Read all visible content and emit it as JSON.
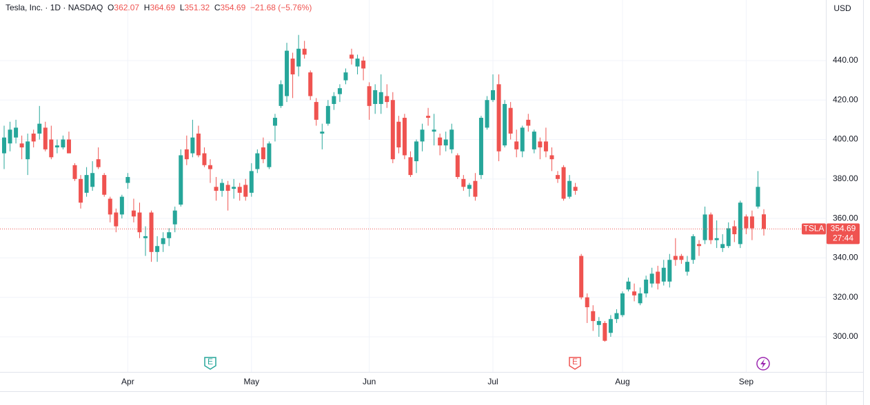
{
  "header": {
    "symbol": "Tesla, Inc. · 1D · NASDAQ",
    "open_label": "O",
    "high_label": "H",
    "low_label": "L",
    "close_label": "C",
    "change": "−21.68 (−5.76%)"
  },
  "chart_data": {
    "type": "candlestick",
    "ticker": "TSLA",
    "countdown": "27:44",
    "currency": "USD",
    "up_color": "#26a69a",
    "down_color": "#ef5350",
    "grid": true,
    "events": [
      "E",
      "E"
    ],
    "ylim": [
      282.2,
      470.7
    ],
    "yticks": [
      {
        "value": 300,
        "label": "300.00"
      },
      {
        "value": 320,
        "label": "320.00"
      },
      {
        "value": 340,
        "label": "340.00"
      },
      {
        "value": 360,
        "label": "360.00"
      },
      {
        "value": 380,
        "label": "380.00"
      },
      {
        "value": 400,
        "label": "400.00"
      },
      {
        "value": 420,
        "label": "420.00"
      },
      {
        "value": 440,
        "label": "440.00"
      }
    ],
    "categories": [
      null,
      null,
      null,
      null,
      null,
      null,
      null,
      null,
      null,
      null,
      null,
      null,
      null,
      null,
      null,
      null,
      null,
      null,
      null,
      null,
      null,
      "Apr",
      null,
      null,
      null,
      null,
      null,
      null,
      null,
      null,
      null,
      null,
      null,
      null,
      null,
      null,
      null,
      null,
      null,
      null,
      null,
      null,
      "May",
      null,
      null,
      null,
      null,
      null,
      null,
      null,
      null,
      null,
      null,
      null,
      null,
      null,
      null,
      null,
      null,
      null,
      null,
      null,
      "Jun",
      null,
      null,
      null,
      null,
      null,
      null,
      null,
      null,
      null,
      null,
      null,
      null,
      null,
      null,
      null,
      null,
      null,
      null,
      null,
      null,
      "Jul",
      null,
      null,
      null,
      null,
      null,
      null,
      null,
      null,
      null,
      null,
      null,
      null,
      null,
      null,
      null,
      null,
      null,
      null,
      null,
      null,
      null,
      "Aug",
      null,
      null,
      null,
      null,
      null,
      null,
      null,
      null,
      null,
      null,
      null,
      null,
      null,
      null,
      null,
      null,
      null,
      null,
      null,
      null,
      "Sep",
      null,
      null,
      null
    ],
    "open": [
      393,
      398,
      401,
      398,
      390,
      403,
      403,
      406,
      400,
      396,
      396,
      400,
      387,
      380,
      373,
      376,
      390,
      382,
      370,
      363,
      362,
      378,
      364,
      363,
      350,
      363,
      343,
      347,
      350,
      357,
      367,
      395,
      393,
      403,
      393,
      387,
      376,
      374,
      377,
      375,
      376,
      377,
      373,
      385,
      396,
      386,
      407,
      417,
      422,
      441,
      437,
      446,
      434,
      419,
      403,
      408,
      418,
      423,
      430,
      443,
      437,
      440,
      427,
      418,
      418,
      422,
      420,
      409,
      411,
      391,
      389,
      399,
      412,
      404,
      401,
      397,
      395,
      392,
      380,
      375,
      379,
      382,
      406,
      420,
      428,
      397,
      416,
      399,
      394,
      410,
      395,
      399,
      399,
      392,
      382,
      386,
      371,
      376,
      341,
      320,
      313,
      306,
      307,
      302,
      309,
      311,
      324,
      323,
      317,
      322,
      327,
      333,
      328,
      328,
      341,
      341,
      333,
      339,
      347,
      349,
      362,
      349,
      345,
      346,
      356,
      347,
      361,
      361,
      366,
      362.07
    ],
    "high": [
      407,
      409,
      410,
      402,
      403,
      405,
      417,
      409,
      407,
      400,
      402,
      404,
      388,
      382,
      386,
      389,
      396,
      383,
      371,
      365,
      372,
      383,
      370,
      368,
      356,
      364,
      351,
      353,
      355,
      366,
      395,
      402,
      410,
      407,
      396,
      390,
      381,
      380,
      379,
      380,
      378,
      380,
      388,
      395,
      401,
      399,
      413,
      430,
      449,
      444,
      453,
      450,
      435,
      421,
      408,
      420,
      424,
      428,
      436,
      446,
      443,
      442,
      429,
      428,
      433,
      428,
      424,
      412,
      413,
      394,
      400,
      408,
      416,
      413,
      403,
      404,
      408,
      393,
      382,
      378,
      383,
      412,
      422,
      433,
      433,
      420,
      419,
      405,
      407,
      413,
      405,
      401,
      406,
      396,
      384,
      387,
      382,
      378,
      342,
      322,
      316,
      310,
      308,
      311,
      314,
      323,
      330,
      327,
      325,
      331,
      335,
      336,
      339,
      342,
      350,
      342,
      341,
      352,
      349,
      366,
      363,
      359,
      352,
      358,
      359,
      369,
      362,
      364,
      384,
      364.69
    ],
    "low": [
      385,
      394,
      398,
      390,
      382,
      396,
      400,
      394,
      390,
      393,
      395,
      393,
      379,
      365,
      371,
      374,
      385,
      371,
      358,
      353,
      360,
      375,
      358,
      350,
      341,
      338,
      338,
      343,
      346,
      353,
      366,
      387,
      391,
      391,
      386,
      378,
      369,
      371,
      364,
      370,
      369,
      369,
      371,
      383,
      388,
      385,
      399,
      416,
      419,
      421,
      432,
      441,
      420,
      407,
      395,
      407,
      415,
      419,
      428,
      438,
      433,
      430,
      410,
      413,
      413,
      416,
      388,
      393,
      390,
      381,
      383,
      394,
      407,
      397,
      392,
      394,
      393,
      380,
      374,
      371,
      369,
      380,
      405,
      419,
      389,
      396,
      400,
      391,
      391,
      404,
      393,
      390,
      391,
      384,
      378,
      369,
      370,
      372,
      319,
      307,
      303,
      300,
      297.5,
      300,
      307,
      310,
      323,
      318,
      316,
      320,
      325,
      324,
      326,
      325,
      336,
      337,
      331,
      337,
      341,
      347,
      347,
      345,
      343,
      345,
      348,
      345,
      352,
      349,
      365,
      351.32
    ],
    "close": [
      401,
      405,
      406,
      396,
      399,
      399,
      408,
      395,
      391,
      397,
      400,
      393,
      380,
      368,
      382,
      383,
      386,
      372,
      362,
      356,
      371,
      381,
      361,
      353,
      351,
      343,
      346,
      350,
      353,
      364,
      392,
      390,
      401,
      392,
      387,
      385,
      374,
      378,
      374,
      376,
      373,
      371,
      384,
      393,
      390,
      398,
      411,
      428,
      445,
      433,
      446,
      443,
      422,
      410,
      404,
      417,
      422,
      426,
      434,
      441,
      441,
      436,
      417,
      425,
      424,
      419,
      390,
      396,
      392,
      382,
      399,
      405,
      411,
      405,
      397,
      400,
      405,
      381,
      376,
      377,
      371,
      411,
      420,
      425,
      394,
      418,
      403,
      395,
      406,
      407,
      404,
      396,
      394,
      390,
      380,
      370,
      379,
      374,
      320,
      315,
      308,
      308,
      298,
      309,
      312,
      322,
      328,
      321,
      322,
      329,
      332,
      327,
      335,
      339,
      339,
      339,
      338,
      351,
      346,
      362,
      349,
      350,
      347,
      355,
      352,
      368,
      355,
      355,
      376,
      354.69
    ]
  }
}
